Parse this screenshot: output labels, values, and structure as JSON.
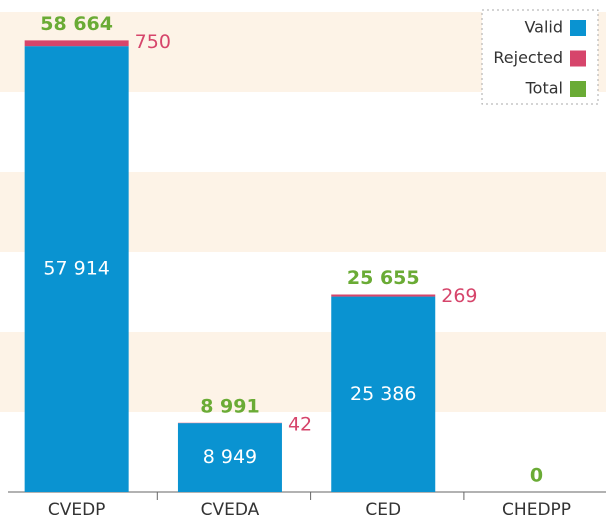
{
  "chart_data": {
    "type": "bar",
    "stacked": true,
    "categories": [
      "CVEDP",
      "CVEDA",
      "CED",
      "CHEDPP"
    ],
    "series": [
      {
        "name": "Valid",
        "color": "#0a93d1",
        "values": [
          57914,
          8949,
          25386,
          0
        ],
        "value_labels": [
          "57 914",
          "8 949",
          "25 386",
          null
        ]
      },
      {
        "name": "Rejected",
        "color": "#d6456b",
        "values": [
          750,
          42,
          269,
          0
        ],
        "value_labels": [
          "750",
          "42",
          "269",
          null
        ]
      },
      {
        "name": "Total",
        "color": "#6aab35",
        "values": [
          58664,
          8991,
          25655,
          0
        ],
        "value_labels": [
          "58 664",
          "8 991",
          "25 655",
          "0"
        ]
      }
    ],
    "ylim": [
      0,
      63000
    ],
    "legend": "top-right"
  }
}
